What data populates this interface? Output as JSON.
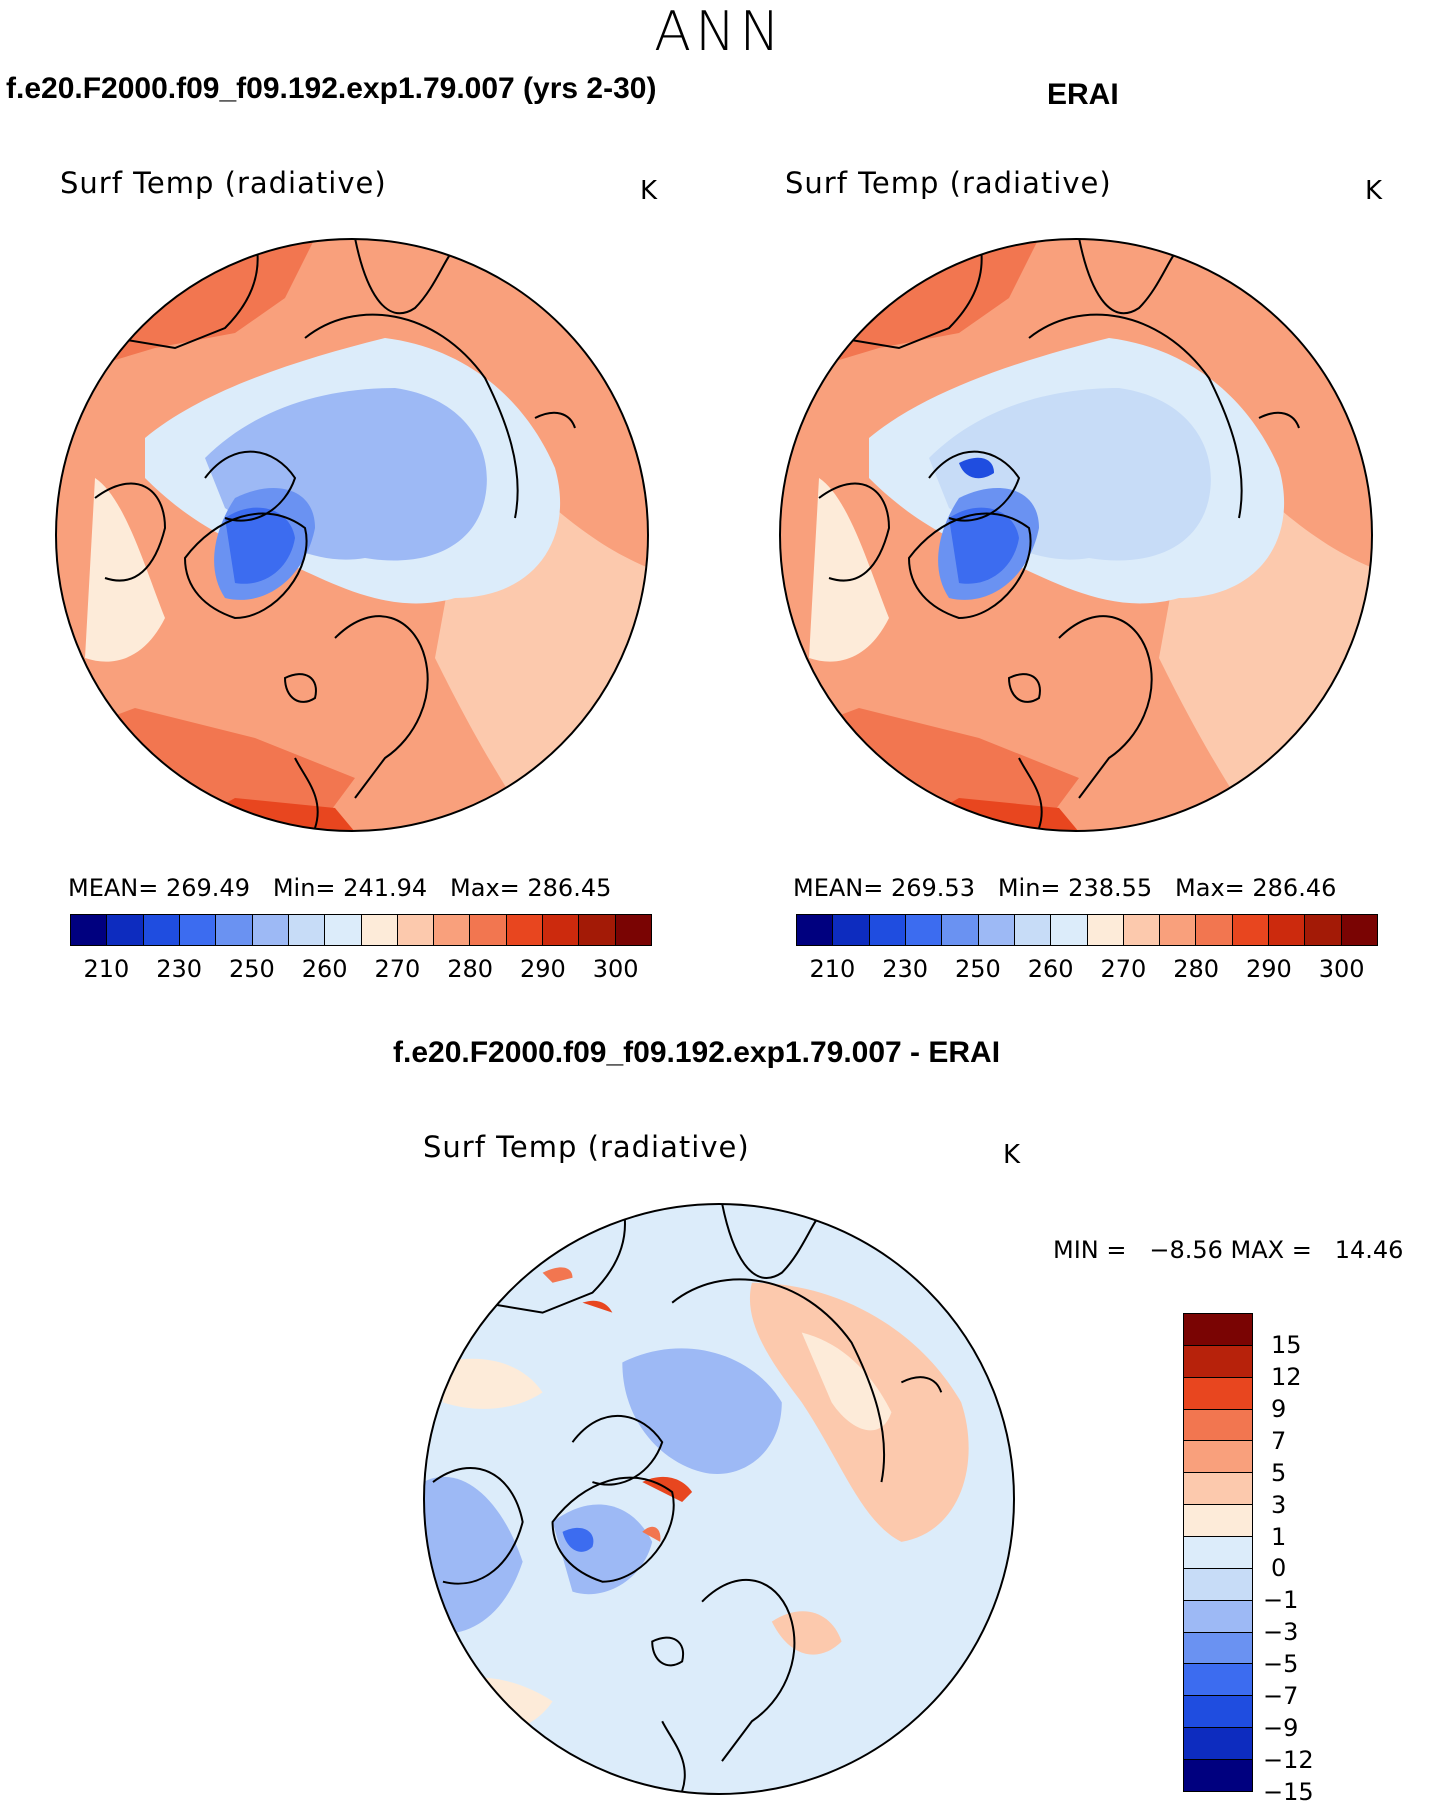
{
  "figure": {
    "season": "ANN",
    "panel_left_title": "f.e20.F2000.f09_f09.192.exp1.79.007 (yrs 2-30)",
    "panel_right_title": "ERAI",
    "diff_title": "f.e20.F2000.f09_f09.192.exp1.79.007 - ERAI"
  },
  "maps": [
    {
      "variable": "Surf Temp (radiative)",
      "units": "K",
      "stats_text": "MEAN= 269.49   Min= 241.94   Max= 286.45",
      "mean": 269.49,
      "min": 241.94,
      "max": 286.45
    },
    {
      "variable": "Surf Temp (radiative)",
      "units": "K",
      "stats_text": "MEAN= 269.53   Min= 238.55   Max= 286.46",
      "mean": 269.53,
      "min": 238.55,
      "max": 286.46
    },
    {
      "variable": "Surf Temp (radiative)",
      "units": "K",
      "stats_text": "MIN =   −8.56 MAX =   14.46",
      "min": -8.56,
      "max": 14.46
    }
  ],
  "colorbar_abs": {
    "colors": [
      "#00007f",
      "#0d2cbf",
      "#1f4de0",
      "#3c6cf0",
      "#6a92f2",
      "#9db9f5",
      "#c7dcf7",
      "#dcecfa",
      "#fdebd9",
      "#fcc9ad",
      "#f9a07c",
      "#f27650",
      "#e8461f",
      "#cc2a0d",
      "#a31a06",
      "#7a0403"
    ],
    "tick_labels": [
      "210",
      "230",
      "250",
      "260",
      "270",
      "280",
      "290",
      "300"
    ]
  },
  "colorbar_diff": {
    "colors": [
      "#7a0403",
      "#b7220b",
      "#e8461f",
      "#f27650",
      "#f9a07c",
      "#fcc9ad",
      "#fdebd9",
      "#dcecfa",
      "#c7dcf7",
      "#9db9f5",
      "#6a92f2",
      "#3c6cf0",
      "#1f4de0",
      "#0d2cbf",
      "#00007f"
    ],
    "tick_labels": [
      "15",
      "12",
      "9",
      "7",
      "5",
      "3",
      "1",
      "0",
      "−1",
      "−3",
      "−5",
      "−7",
      "−9",
      "−12",
      "−15"
    ]
  }
}
